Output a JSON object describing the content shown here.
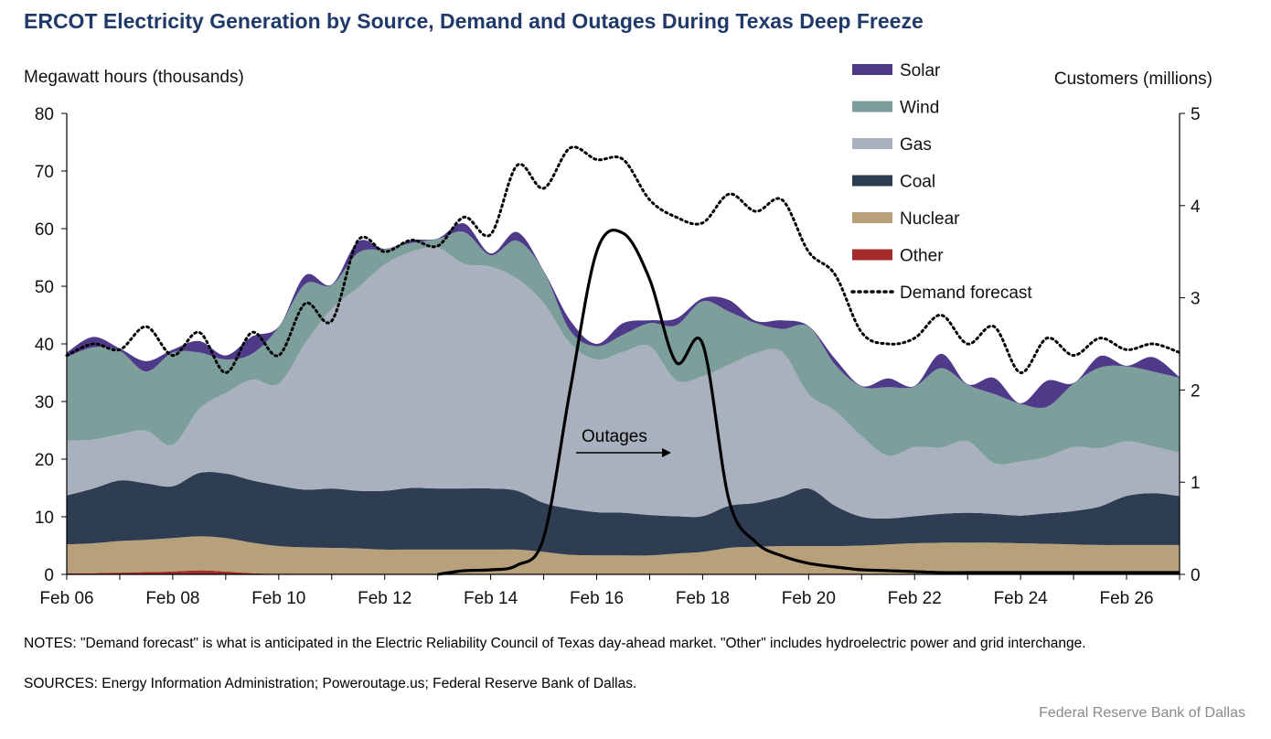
{
  "title": "ERCOT Electricity Generation by Source, Demand and Outages During Texas Deep Freeze",
  "notes": "NOTES: \"Demand forecast\" is what is anticipated in the Electric Reliability Council of Texas day-ahead market. \"Other\" includes hydroelectric power and grid interchange.",
  "sources": "SOURCES: Energy Information Administration; Poweroutage.us; Federal Reserve Bank of Dallas.",
  "footer": "Federal Reserve Bank of Dallas",
  "chart_data": {
    "type": "area",
    "title": "ERCOT Electricity Generation by Source, Demand and Outages During Texas Deep Freeze",
    "ylabel": "Megawatt hours (thousands)",
    "ylabel_right": "Customers (millions)",
    "ylim": [
      0,
      80
    ],
    "ylim_right": [
      0,
      5
    ],
    "yticks": [
      "0",
      "10",
      "20",
      "30",
      "40",
      "50",
      "60",
      "70",
      "80"
    ],
    "yticks_right": [
      "0",
      "1",
      "2",
      "3",
      "4",
      "5"
    ],
    "x_start": "Feb 06",
    "x_end": "Feb 27",
    "x_tick_labels": [
      "Feb 06",
      "Feb 08",
      "Feb 10",
      "Feb 12",
      "Feb 14",
      "Feb 16",
      "Feb 18",
      "Feb 20",
      "Feb 22",
      "Feb 24",
      "Feb 26"
    ],
    "x_days": [
      6,
      6.5,
      7,
      7.5,
      8,
      8.5,
      9,
      9.5,
      10,
      10.5,
      11,
      11.5,
      12,
      12.5,
      13,
      13.5,
      14,
      14.5,
      15,
      15.5,
      16,
      16.5,
      17,
      17.5,
      18,
      18.5,
      19,
      19.5,
      20,
      20.5,
      21,
      21.5,
      22,
      22.5,
      23,
      23.5,
      24,
      24.5,
      25,
      25.5,
      26,
      26.5,
      27
    ],
    "legend_position": "top-right",
    "grid": false,
    "series": [
      {
        "name": "Other",
        "color": "#a52a2a",
        "axis": "left",
        "values": [
          0.2,
          0.2,
          0.3,
          0.4,
          0.5,
          0.7,
          0.5,
          0.2,
          0.1,
          0.1,
          0.1,
          0.1,
          0.1,
          0.1,
          0.1,
          0.1,
          0.1,
          0.1,
          0.1,
          0.1,
          0.1,
          0.1,
          0.1,
          0.1,
          0.1,
          0.1,
          0.1,
          0.1,
          0.1,
          0.1,
          0.1,
          0.1,
          0.1,
          0.1,
          0.1,
          0.1,
          0.1,
          0.1,
          0.1,
          0.1,
          0.1,
          0.1,
          0.1
        ]
      },
      {
        "name": "Nuclear",
        "color": "#b8a07a",
        "axis": "left",
        "values": [
          5.0,
          5.2,
          5.5,
          5.6,
          5.8,
          5.9,
          5.8,
          5.3,
          4.8,
          4.6,
          4.5,
          4.4,
          4.2,
          4.2,
          4.2,
          4.2,
          4.2,
          4.2,
          3.8,
          3.3,
          3.2,
          3.2,
          3.2,
          3.5,
          3.8,
          4.5,
          4.7,
          4.8,
          4.8,
          4.8,
          4.9,
          5.1,
          5.3,
          5.4,
          5.4,
          5.4,
          5.3,
          5.2,
          5.1,
          5.0,
          5.0,
          5.0,
          5.0
        ]
      },
      {
        "name": "Coal",
        "color": "#2e3d52",
        "axis": "left",
        "values": [
          8.5,
          9.5,
          10.5,
          9.8,
          9.0,
          11.0,
          11.2,
          10.8,
          10.5,
          10.0,
          10.3,
          10.0,
          10.2,
          10.7,
          10.6,
          10.6,
          10.6,
          10.2,
          8.5,
          8.0,
          7.5,
          7.4,
          7.0,
          6.5,
          6.2,
          7.3,
          7.6,
          8.6,
          10.0,
          7.0,
          5.0,
          4.5,
          4.7,
          5.0,
          5.2,
          5.0,
          4.8,
          5.3,
          5.8,
          6.7,
          8.5,
          9.0,
          8.5
        ]
      },
      {
        "name": "Gas",
        "color": "#a8b1bd",
        "axis": "left",
        "values": [
          9.5,
          8.5,
          8.0,
          9.1,
          7.2,
          11.1,
          14.0,
          17.5,
          17.7,
          25.4,
          31.2,
          35.3,
          39.3,
          41.0,
          41.8,
          39.0,
          38.5,
          36.8,
          34.7,
          28.7,
          26.5,
          27.9,
          29.3,
          23.6,
          24.3,
          24.5,
          26.0,
          25.1,
          16.4,
          16.5,
          14.0,
          10.9,
          12.0,
          11.5,
          12.4,
          8.8,
          9.4,
          9.8,
          11.1,
          10.1,
          9.5,
          8.1,
          7.5
        ]
      },
      {
        "name": "Wind",
        "color": "#7c9f9b",
        "axis": "left",
        "values": [
          14.5,
          16.0,
          14.5,
          10.3,
          16.0,
          9.8,
          5.8,
          4.5,
          9.8,
          10.3,
          4.1,
          6.0,
          2.6,
          1.5,
          1.5,
          5.5,
          2.0,
          6.6,
          5.5,
          2.2,
          2.3,
          3.0,
          4.0,
          9.5,
          13.0,
          9.2,
          5.2,
          4.0,
          11.7,
          8.0,
          8.6,
          11.9,
          10.5,
          13.8,
          9.8,
          12.0,
          10.0,
          8.7,
          11.0,
          14.0,
          13.0,
          13.0,
          13.0
        ]
      },
      {
        "name": "Solar",
        "color": "#4f3a8a",
        "axis": "left",
        "values": [
          0.8,
          1.8,
          0.4,
          1.8,
          0.5,
          2.0,
          0.7,
          3.0,
          0.1,
          1.5,
          0.1,
          2.0,
          0.1,
          0.5,
          0.1,
          1.5,
          0.3,
          1.5,
          0.1,
          1.8,
          0.4,
          2.0,
          0.5,
          1.2,
          0.5,
          2.0,
          0.4,
          1.5,
          0.1,
          1.0,
          0.1,
          1.5,
          0.1,
          2.5,
          0.1,
          2.8,
          0.1,
          4.5,
          0.1,
          2.0,
          0.1,
          2.5,
          0.1
        ]
      },
      {
        "name": "Demand forecast",
        "color": "#000000",
        "axis": "left",
        "style": "dotted",
        "values": [
          38.0,
          40.0,
          39.0,
          43.0,
          38.0,
          42.0,
          35.0,
          42.0,
          38.0,
          47.0,
          44.0,
          58.0,
          56.0,
          58.0,
          57.0,
          62.0,
          59.0,
          71.0,
          67.0,
          74.0,
          72.0,
          72.0,
          65.0,
          62.0,
          61.0,
          66.0,
          63.0,
          65.0,
          56.0,
          52.0,
          42.0,
          40.0,
          41.0,
          45.0,
          40.0,
          43.0,
          35.0,
          41.0,
          38.0,
          41.0,
          39.0,
          40.0,
          38.5
        ]
      },
      {
        "name": "Outages",
        "color": "#000000",
        "axis": "right",
        "values": [
          0,
          0,
          0,
          0,
          0,
          0,
          0,
          0,
          0,
          0,
          0,
          0,
          0,
          0,
          0,
          0.04,
          0.05,
          0.1,
          0.4,
          2.0,
          3.5,
          3.7,
          3.2,
          2.3,
          2.5,
          0.8,
          0.35,
          0.2,
          0.12,
          0.08,
          0.05,
          0.04,
          0.03,
          0.02,
          0.02,
          0.02,
          0.02,
          0.02,
          0.02,
          0.02,
          0.02,
          0.02,
          0.02
        ]
      }
    ],
    "annotations": [
      {
        "text": "Outages"
      }
    ]
  }
}
